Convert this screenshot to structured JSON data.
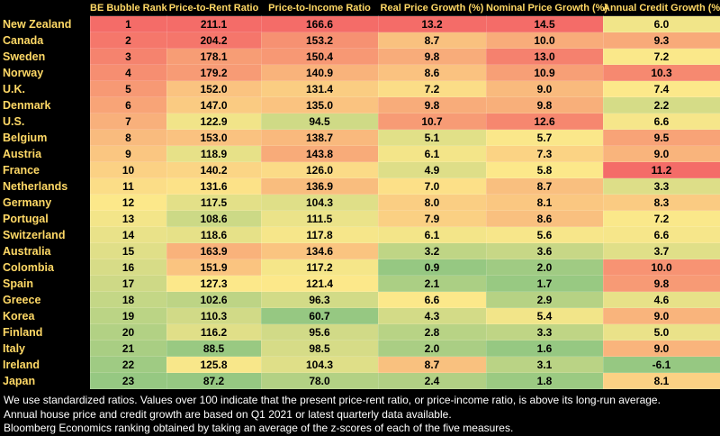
{
  "table": {
    "header": [
      "",
      "BE Bubble Rank",
      "Price-to-Rent Ratio",
      "Price-to-Income Ratio",
      "Real Price Growth (%)",
      "Nominal Price Growth (%)",
      "Annual Credit Growth (%)"
    ],
    "rows": [
      [
        "New Zealand",
        "1",
        "211.1",
        "166.6",
        "13.2",
        "14.5",
        "6.0"
      ],
      [
        "Canada",
        "2",
        "204.2",
        "153.2",
        "8.7",
        "10.0",
        "9.3"
      ],
      [
        "Sweden",
        "3",
        "178.1",
        "150.4",
        "9.8",
        "13.0",
        "7.2"
      ],
      [
        "Norway",
        "4",
        "179.2",
        "140.9",
        "8.6",
        "10.9",
        "10.3"
      ],
      [
        "U.K.",
        "5",
        "152.0",
        "131.4",
        "7.2",
        "9.0",
        "7.4"
      ],
      [
        "Denmark",
        "6",
        "147.0",
        "135.0",
        "9.8",
        "9.8",
        "2.2"
      ],
      [
        "U.S.",
        "7",
        "122.9",
        "94.5",
        "10.7",
        "12.6",
        "6.6"
      ],
      [
        "Belgium",
        "8",
        "153.0",
        "138.7",
        "5.1",
        "5.7",
        "9.5"
      ],
      [
        "Austria",
        "9",
        "118.9",
        "143.8",
        "6.1",
        "7.3",
        "9.0"
      ],
      [
        "France",
        "10",
        "140.2",
        "126.0",
        "4.9",
        "5.8",
        "11.2"
      ],
      [
        "Netherlands",
        "11",
        "131.6",
        "136.9",
        "7.0",
        "8.7",
        "3.3"
      ],
      [
        "Germany",
        "12",
        "117.5",
        "104.3",
        "8.0",
        "8.1",
        "8.3"
      ],
      [
        "Portugal",
        "13",
        "108.6",
        "111.5",
        "7.9",
        "8.6",
        "7.2"
      ],
      [
        "Switzerland",
        "14",
        "118.6",
        "117.8",
        "6.1",
        "5.6",
        "6.6"
      ],
      [
        "Australia",
        "15",
        "163.9",
        "134.6",
        "3.2",
        "3.6",
        "3.7"
      ],
      [
        "Colombia",
        "16",
        "151.9",
        "117.2",
        "0.9",
        "2.0",
        "10.0"
      ],
      [
        "Spain",
        "17",
        "127.3",
        "121.4",
        "2.1",
        "1.7",
        "9.8"
      ],
      [
        "Greece",
        "18",
        "102.6",
        "96.3",
        "6.6",
        "2.9",
        "4.6"
      ],
      [
        "Korea",
        "19",
        "110.3",
        "60.7",
        "4.3",
        "5.4",
        "9.0"
      ],
      [
        "Finland",
        "20",
        "116.2",
        "95.6",
        "2.8",
        "3.3",
        "5.0"
      ],
      [
        "Italy",
        "21",
        "88.5",
        "98.5",
        "2.0",
        "1.6",
        "9.0"
      ],
      [
        "Ireland",
        "22",
        "125.8",
        "104.3",
        "8.7",
        "3.1",
        "-6.1"
      ],
      [
        "Japan",
        "23",
        "87.2",
        "78.0",
        "2.4",
        "1.8",
        "8.1"
      ]
    ]
  },
  "notes": [
    "We use standardized ratios. Values over 100 indicate that the present price-rent ratio, or price-income ratio, is above its long-run average.",
    "Annual house price and credit growth are based on Q1 2021 or latest quarterly data available.",
    "Bloomberg Economics ranking obtained by taking an average of the z-scores of each of the five measures."
  ]
}
